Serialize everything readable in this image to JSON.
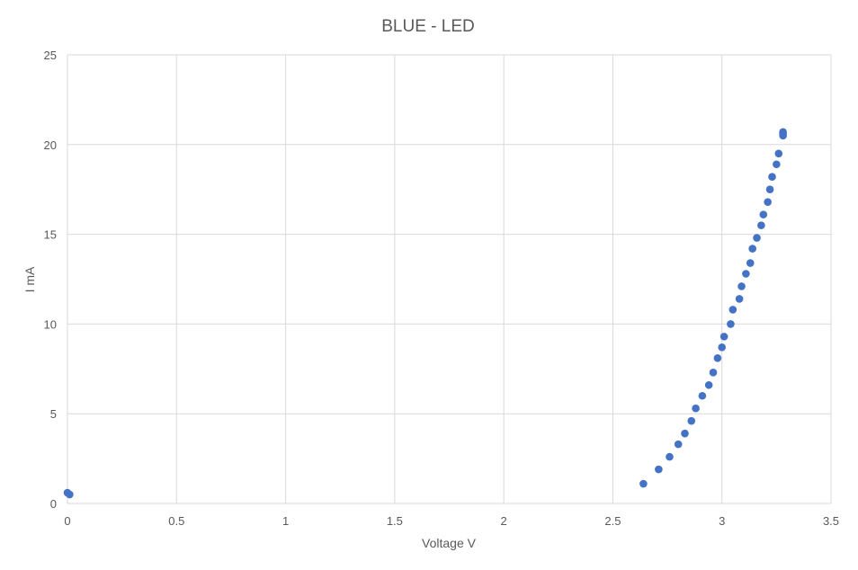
{
  "chart_data": {
    "type": "scatter",
    "title": "BLUE - LED",
    "xlabel": "Voltage V",
    "ylabel": "I mA",
    "xlim": [
      0,
      3.5
    ],
    "ylim": [
      0,
      25
    ],
    "xticks": [
      "0",
      "0.5",
      "1",
      "1.5",
      "2",
      "2.5",
      "3",
      "3.5"
    ],
    "yticks": [
      "0",
      "5",
      "10",
      "15",
      "20",
      "25"
    ],
    "grid": true,
    "marker_color": "#4472C4",
    "series": [
      {
        "points": [
          [
            0.0,
            0.6
          ],
          [
            0.01,
            0.5
          ],
          [
            2.64,
            1.1
          ],
          [
            2.71,
            1.9
          ],
          [
            2.76,
            2.6
          ],
          [
            2.8,
            3.3
          ],
          [
            2.83,
            3.9
          ],
          [
            2.86,
            4.6
          ],
          [
            2.88,
            5.3
          ],
          [
            2.91,
            6.0
          ],
          [
            2.94,
            6.6
          ],
          [
            2.96,
            7.3
          ],
          [
            2.98,
            8.1
          ],
          [
            3.0,
            8.7
          ],
          [
            3.01,
            9.3
          ],
          [
            3.04,
            10.0
          ],
          [
            3.05,
            10.8
          ],
          [
            3.08,
            11.4
          ],
          [
            3.09,
            12.1
          ],
          [
            3.11,
            12.8
          ],
          [
            3.13,
            13.4
          ],
          [
            3.14,
            14.2
          ],
          [
            3.16,
            14.8
          ],
          [
            3.18,
            15.5
          ],
          [
            3.19,
            16.1
          ],
          [
            3.21,
            16.8
          ],
          [
            3.22,
            17.5
          ],
          [
            3.23,
            18.2
          ],
          [
            3.25,
            18.9
          ],
          [
            3.26,
            19.5
          ],
          [
            3.28,
            20.5
          ],
          [
            3.28,
            20.7
          ],
          [
            3.28,
            20.6
          ]
        ]
      }
    ]
  }
}
